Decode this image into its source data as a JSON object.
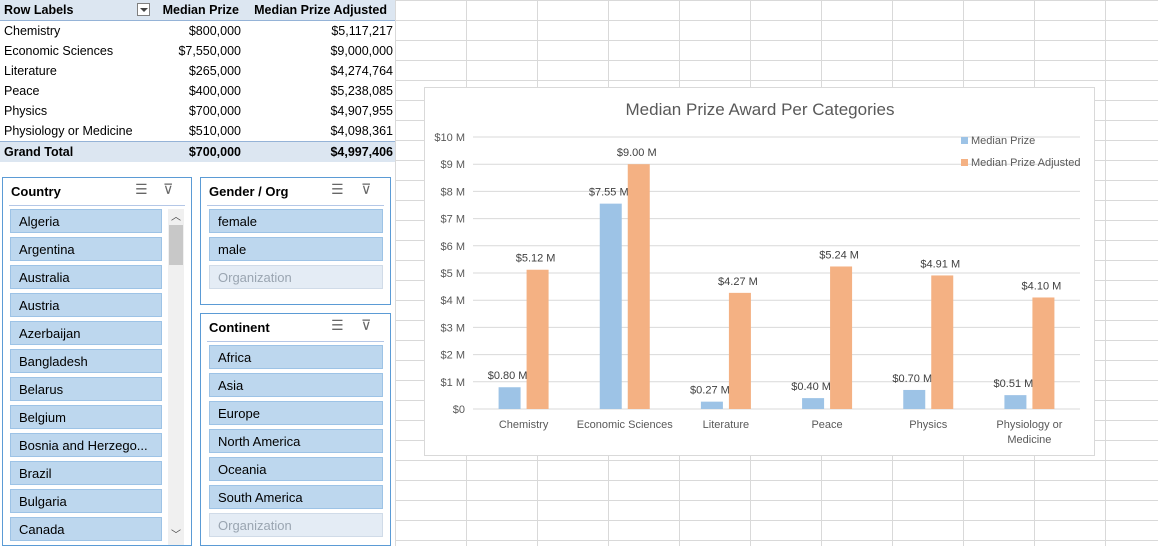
{
  "pivot": {
    "headers": {
      "row_labels": "Row Labels",
      "median": "Median Prize",
      "adjusted": "Median Prize Adjusted"
    },
    "rows": [
      {
        "label": "Chemistry",
        "median": "$800,000",
        "adjusted": "$5,117,217"
      },
      {
        "label": "Economic Sciences",
        "median": "$7,550,000",
        "adjusted": "$9,000,000"
      },
      {
        "label": "Literature",
        "median": "$265,000",
        "adjusted": "$4,274,764"
      },
      {
        "label": "Peace",
        "median": "$400,000",
        "adjusted": "$5,238,085"
      },
      {
        "label": "Physics",
        "median": "$700,000",
        "adjusted": "$4,907,955"
      },
      {
        "label": "Physiology or Medicine",
        "median": "$510,000",
        "adjusted": "$4,098,361"
      }
    ],
    "total": {
      "label": "Grand Total",
      "median": "$700,000",
      "adjusted": "$4,997,406"
    }
  },
  "slicers": {
    "country": {
      "title": "Country",
      "items": [
        "Algeria",
        "Argentina",
        "Australia",
        "Austria",
        "Azerbaijan",
        "Bangladesh",
        "Belarus",
        "Belgium",
        "Bosnia and Herzego...",
        "Brazil",
        "Bulgaria",
        "Canada"
      ]
    },
    "gender": {
      "title": "Gender / Org",
      "items": [
        "female",
        "male"
      ],
      "dim_items": [
        "Organization"
      ]
    },
    "continent": {
      "title": "Continent",
      "items": [
        "Africa",
        "Asia",
        "Europe",
        "North America",
        "Oceania",
        "South America"
      ],
      "dim_items": [
        "Organization"
      ]
    }
  },
  "icons": {
    "multiselect": "multi-select-icon",
    "clear_filter": "clear-filter-icon",
    "filter_dropdown": "dropdown-arrow-icon"
  },
  "chart_data": {
    "type": "bar",
    "title": "Median Prize Award Per Categories",
    "categories": [
      "Chemistry",
      "Economic Sciences",
      "Literature",
      "Peace",
      "Physics",
      "Physiology or Medicine"
    ],
    "series": [
      {
        "name": "Median Prize",
        "values": [
          0.8,
          7.55,
          0.27,
          0.4,
          0.7,
          0.51
        ],
        "labels": [
          "$0.80 M",
          "$7.55 M",
          "$0.27 M",
          "$0.40 M",
          "$0.70 M",
          "$0.51 M"
        ],
        "color": "#9dc3e6"
      },
      {
        "name": "Median Prize Adjusted",
        "values": [
          5.12,
          9.0,
          4.27,
          5.24,
          4.91,
          4.1
        ],
        "labels": [
          "$5.12 M",
          "$9.00 M",
          "$4.27 M",
          "$5.24 M",
          "$4.91 M",
          "$4.10 M"
        ],
        "color": "#f4b183"
      }
    ],
    "ylim": [
      0,
      10
    ],
    "yticks": [
      "$0",
      "$1 M",
      "$2 M",
      "$3 M",
      "$4 M",
      "$5 M",
      "$6 M",
      "$7 M",
      "$8 M",
      "$9 M",
      "$10 M"
    ],
    "legend": "top-right",
    "grid": true,
    "xlabel": "",
    "ylabel": ""
  }
}
